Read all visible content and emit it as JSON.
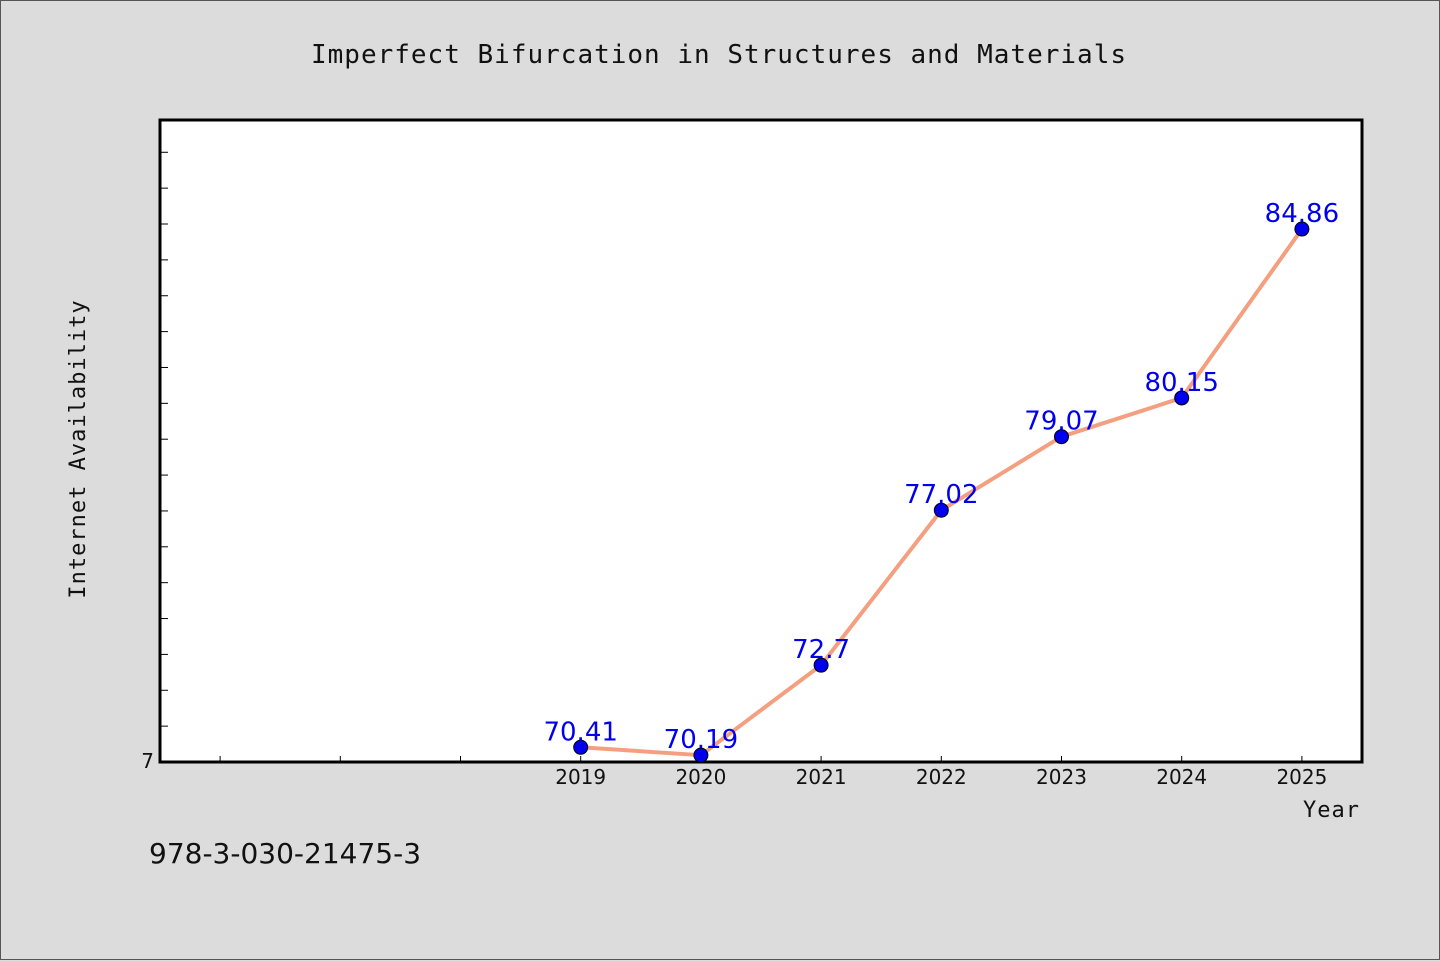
{
  "chart_data": {
    "type": "line",
    "title": "Imperfect Bifurcation in Structures and Materials",
    "xlabel": "Year",
    "ylabel": "Internet Availability",
    "x": [
      "2019",
      "2020",
      "2021",
      "2022",
      "2023",
      "2024",
      "2025"
    ],
    "values": [
      70.41,
      70.19,
      72.7,
      77.02,
      79.07,
      80.15,
      84.86
    ],
    "data_labels": [
      "70.41",
      "70.19",
      "72.7",
      "77.02",
      "79.07",
      "80.15",
      "84.86"
    ],
    "xlim": [
      2015.5,
      2025.5
    ],
    "ylim": [
      70,
      87.9
    ],
    "y_ticks_labeled": [
      "7"
    ],
    "grid": false,
    "legend": "none",
    "colors": {
      "line": "#f4a080",
      "marker": "#0000ee",
      "label": "#0000ee"
    }
  },
  "footer": {
    "isbn": "978-3-030-21475-3"
  }
}
